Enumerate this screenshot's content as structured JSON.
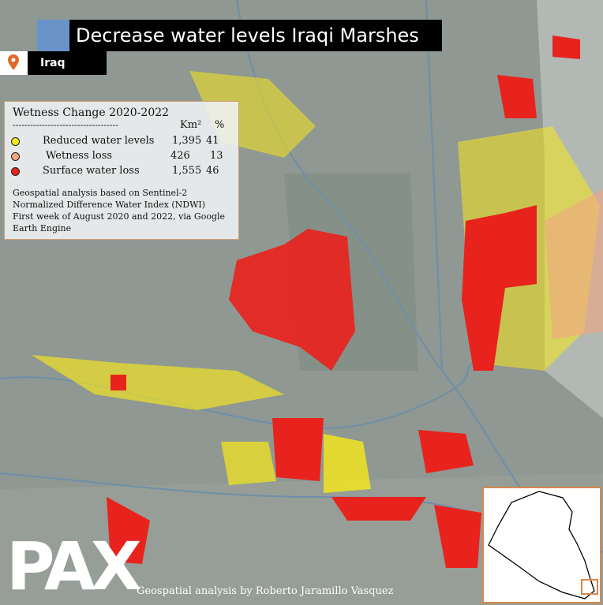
{
  "header": {
    "title": "Decrease water levels Iraqi Marshes",
    "location": "Iraq"
  },
  "legend": {
    "title": "Wetness Change 2020-2022",
    "separator": "------------------------------------",
    "columns": [
      "Km²",
      "%"
    ],
    "rows": [
      {
        "label": "Reduced water levels",
        "km2": "1,395",
        "percent": "41",
        "color": "#f7e81a"
      },
      {
        "label": "Wetness loss",
        "km2": "426",
        "percent": "13",
        "color": "#f2a582"
      },
      {
        "label": "Surface water loss",
        "km2": "1,555",
        "percent": "46",
        "color": "#e8231e"
      }
    ],
    "note": [
      "Geospatial analysis based on Sentinel-2",
      "Normalized Difference Water Index (NDWI)",
      "First week of August 2020 and 2022, via Google",
      "Earth Engine"
    ]
  },
  "logo": "PAX",
  "credit": "Geospatial analysis by Roberto  Jaramillo Vasquez"
}
